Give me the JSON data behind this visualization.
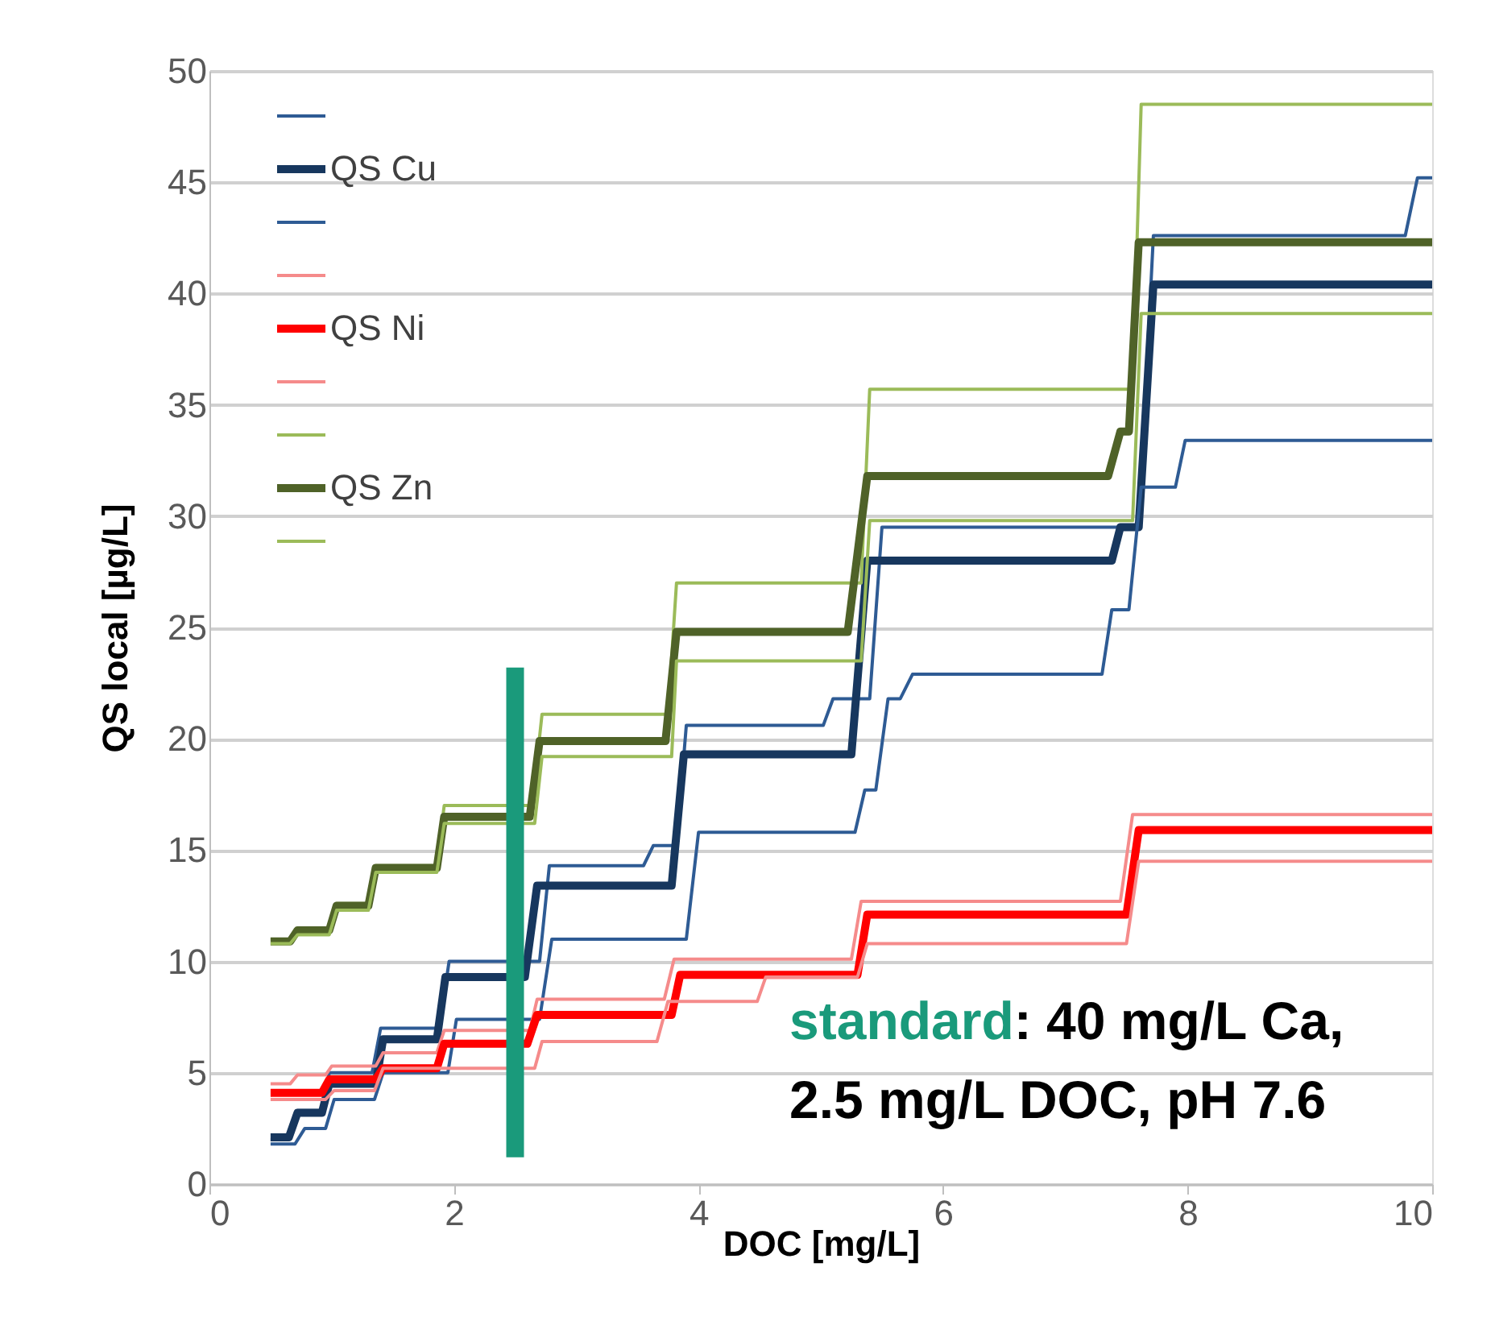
{
  "chart_data": {
    "type": "line",
    "xlabel": "DOC [mg/L]",
    "ylabel": "QS local [µg/L]",
    "xlim": [
      0,
      10
    ],
    "xticks": [
      0,
      2,
      4,
      6,
      8,
      10
    ],
    "ylim": [
      0,
      50
    ],
    "yticks": [
      0,
      5,
      10,
      15,
      20,
      25,
      30,
      35,
      40,
      45,
      50
    ],
    "grid": "y",
    "legend": "top left",
    "line_style": "solid",
    "annotations": [
      "standard",
      ": 40 mg/L Ca,",
      "2.5 mg/L DOC, pH 7.6"
    ],
    "series": [
      {
        "color": "#2e5b94",
        "x": [
          0.5,
          0.65,
          0.72,
          0.92,
          0.98,
          1.33,
          1.4,
          1.88,
          1.96,
          2.7,
          2.78,
          3.55,
          3.63,
          3.82,
          3.9,
          5.02,
          5.1,
          5.4,
          5.5,
          7.6,
          7.72,
          9.78,
          9.88,
          10
        ],
        "values": [
          2.0,
          2.0,
          3.3,
          3.3,
          5.0,
          5.0,
          7.0,
          7.0,
          10.0,
          10.0,
          14.3,
          14.3,
          15.2,
          15.2,
          20.6,
          20.6,
          21.8,
          21.8,
          29.5,
          29.5,
          42.6,
          42.6,
          45.2,
          45.2
        ]
      },
      {
        "name": "QS Cu",
        "color": "#17375e",
        "x": [
          0.5,
          0.65,
          0.72,
          0.92,
          0.98,
          1.36,
          1.42,
          1.86,
          1.93,
          2.58,
          2.68,
          3.78,
          3.88,
          5.25,
          5.38,
          7.38,
          7.45,
          7.6,
          7.72,
          10
        ],
        "values": [
          2.1,
          2.1,
          3.2,
          3.2,
          4.5,
          4.5,
          6.5,
          6.5,
          9.3,
          9.3,
          13.4,
          13.4,
          19.3,
          19.3,
          28.0,
          28.0,
          29.5,
          29.5,
          40.4,
          40.4
        ]
      },
      {
        "color": "#2e5b94",
        "x": [
          0.5,
          0.7,
          0.78,
          0.95,
          1.02,
          1.35,
          1.42,
          1.95,
          2.02,
          2.7,
          2.8,
          3.9,
          4.0,
          5.28,
          5.36,
          5.45,
          5.55,
          5.65,
          5.75,
          7.3,
          7.38,
          7.52,
          7.62,
          7.9,
          7.98,
          10
        ],
        "values": [
          1.8,
          1.8,
          2.5,
          2.5,
          3.8,
          3.8,
          5.0,
          5.0,
          7.4,
          7.4,
          11.0,
          11.0,
          15.8,
          15.8,
          17.7,
          17.7,
          21.8,
          21.8,
          22.9,
          22.9,
          25.8,
          25.8,
          31.3,
          31.3,
          33.4,
          33.4
        ]
      },
      {
        "color": "#f58b8b",
        "x": [
          0.5,
          0.66,
          0.72,
          0.95,
          1.0,
          1.36,
          1.42,
          1.86,
          1.92,
          2.62,
          2.68,
          3.72,
          3.8,
          5.25,
          5.33,
          7.45,
          7.55,
          10
        ],
        "values": [
          4.5,
          4.5,
          4.9,
          4.9,
          5.3,
          5.3,
          5.9,
          5.9,
          6.9,
          6.9,
          8.3,
          8.3,
          10.1,
          10.1,
          12.7,
          12.7,
          16.6,
          16.6
        ]
      },
      {
        "name": "QS Ni",
        "color": "#ff0000",
        "x": [
          0.5,
          0.92,
          0.98,
          1.36,
          1.42,
          1.86,
          1.92,
          2.6,
          2.68,
          3.78,
          3.85,
          5.3,
          5.38,
          7.5,
          7.6,
          10
        ],
        "values": [
          4.1,
          4.1,
          4.7,
          4.7,
          5.2,
          5.2,
          6.3,
          6.3,
          7.6,
          7.6,
          9.4,
          9.4,
          12.1,
          12.1,
          15.9,
          15.9
        ]
      },
      {
        "color": "#f58b8b",
        "x": [
          0.5,
          0.95,
          1.02,
          1.35,
          1.42,
          2.66,
          2.72,
          3.66,
          3.75,
          4.48,
          4.55,
          5.3,
          5.38,
          7.5,
          7.6,
          10
        ],
        "values": [
          3.8,
          3.8,
          4.2,
          4.2,
          5.2,
          5.2,
          6.4,
          6.4,
          8.2,
          8.2,
          9.3,
          9.3,
          10.8,
          10.8,
          14.5,
          14.5
        ]
      },
      {
        "color": "#9bbb59",
        "x": [
          0.5,
          0.66,
          0.72,
          0.98,
          1.04,
          1.3,
          1.36,
          1.86,
          1.92,
          2.64,
          2.72,
          3.75,
          3.82,
          5.33,
          5.4,
          7.55,
          7.62,
          10
        ],
        "values": [
          11.0,
          11.0,
          11.5,
          11.5,
          12.6,
          12.6,
          14.3,
          14.3,
          17.0,
          17.0,
          21.1,
          21.1,
          27.0,
          27.0,
          35.7,
          35.7,
          48.5,
          48.5
        ]
      },
      {
        "name": "QS Zn",
        "color": "#4f6228",
        "x": [
          0.5,
          0.66,
          0.72,
          0.98,
          1.04,
          1.3,
          1.36,
          1.86,
          1.92,
          2.62,
          2.7,
          3.73,
          3.82,
          5.22,
          5.38,
          7.35,
          7.45,
          7.52,
          7.6,
          10
        ],
        "values": [
          10.9,
          10.9,
          11.4,
          11.4,
          12.5,
          12.5,
          14.2,
          14.2,
          16.5,
          16.5,
          19.9,
          19.9,
          24.8,
          24.8,
          31.8,
          31.8,
          33.8,
          33.8,
          42.3,
          42.3
        ]
      },
      {
        "color": "#9bbb59",
        "x": [
          0.5,
          0.66,
          0.72,
          0.98,
          1.04,
          1.3,
          1.36,
          1.86,
          1.92,
          2.66,
          2.72,
          3.78,
          3.82,
          5.33,
          5.4,
          7.55,
          7.62,
          10
        ],
        "values": [
          10.8,
          10.8,
          11.2,
          11.2,
          12.3,
          12.3,
          14.0,
          14.0,
          16.2,
          16.2,
          19.2,
          19.2,
          23.5,
          23.5,
          29.8,
          29.8,
          39.1,
          39.1
        ]
      },
      {
        "type": "line",
        "color": "#1a9a7b",
        "x": [
          2.5,
          2.5
        ],
        "values": [
          1.2,
          23.2
        ]
      }
    ]
  }
}
